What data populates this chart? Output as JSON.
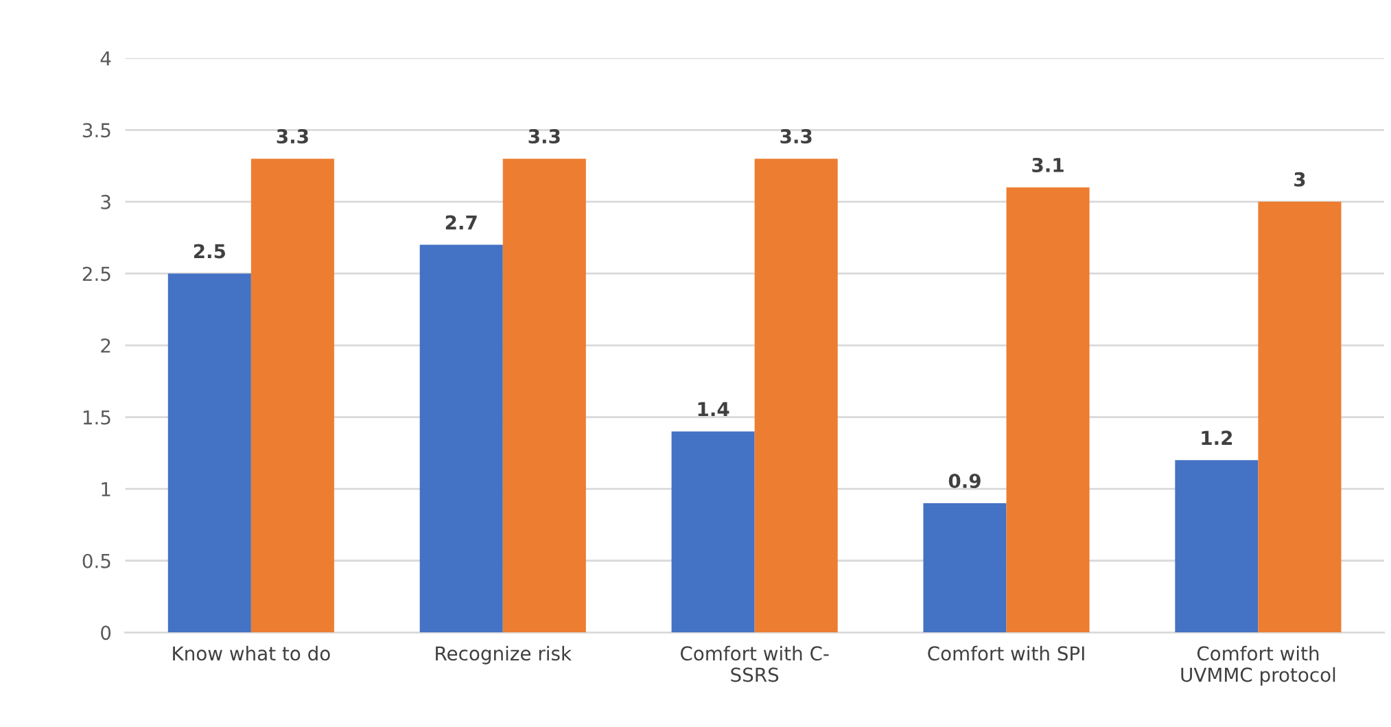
{
  "chart_data": {
    "type": "bar",
    "categories": [
      "Know what to do",
      "Recognize risk",
      "Comfort with C-\nSSRS",
      "Comfort with SPI",
      "Comfort with\nUVMMC protocol"
    ],
    "series": [
      {
        "color": "#4472c4",
        "values": [
          2.5,
          2.7,
          1.4,
          0.9,
          1.2
        ]
      },
      {
        "color": "#ed7d31",
        "values": [
          3.3,
          3.3,
          3.3,
          3.1,
          3
        ]
      }
    ],
    "ylim": [
      0,
      4
    ],
    "yticks": [
      0,
      0.5,
      1,
      1.5,
      2,
      2.5,
      3,
      3.5,
      4
    ],
    "grid": "y",
    "data_labels": true
  }
}
